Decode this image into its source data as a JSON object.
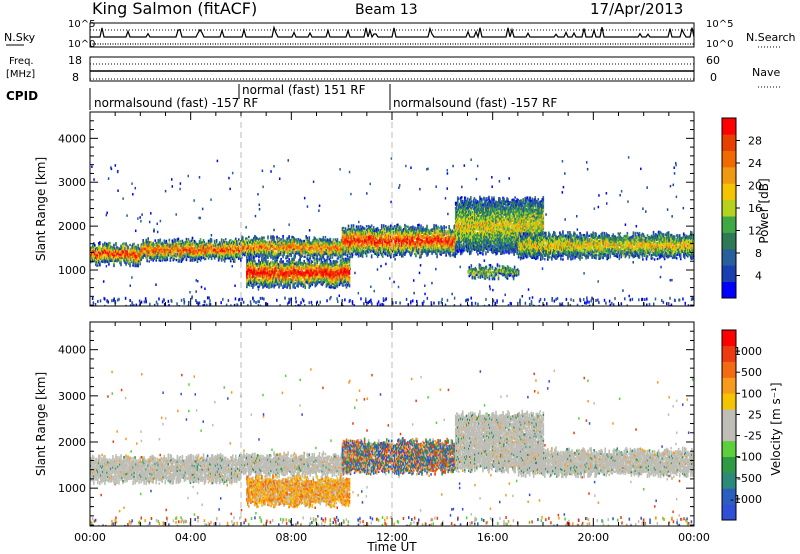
{
  "header": {
    "station": "King Salmon (fitACF)",
    "beam": "Beam 13",
    "date": "17/Apr/2013"
  },
  "top_panels": {
    "nsky": {
      "label": "N.Sky",
      "ticks": [
        "10^5",
        "10^0"
      ]
    },
    "nsearch": {
      "label": "N.Search"
    },
    "freq": {
      "label_line1": "Freq.",
      "label_line2": "[MHz]",
      "ticks": [
        "18",
        "8"
      ]
    },
    "nave": {
      "label": "Nave",
      "ticks": [
        "60",
        "0"
      ]
    },
    "cpid": {
      "label": "CPID",
      "segments": [
        {
          "text": "normalsound (fast) -157 RF",
          "start_hour": 0,
          "end_hour": 6
        },
        {
          "text": "normal (fast) 151 RF",
          "start_hour": 6,
          "end_hour": 12
        },
        {
          "text": "normalsound (fast) -157 RF",
          "start_hour": 12,
          "end_hour": 24
        }
      ]
    }
  },
  "chart_data": [
    {
      "type": "heatmap",
      "quantity": "Power",
      "ylabel": "Slant Range [km]",
      "xlabel": "",
      "xlim_hours": [
        0,
        24
      ],
      "ylim_km": [
        180,
        4600
      ],
      "yticks": [
        "4000",
        "3000",
        "2000",
        "1000"
      ],
      "colorbar": {
        "label": "Power [dB]",
        "ticks": [
          "28",
          "24",
          "20",
          "16",
          "12",
          "8",
          "4"
        ],
        "colors": [
          "#0000ff",
          "#1a3fb0",
          "#27609a",
          "#2f7a56",
          "#3fa845",
          "#b5d31e",
          "#f5c400",
          "#f09a14",
          "#f06a00",
          "#e84000",
          "#ff0000"
        ]
      },
      "bands": [
        {
          "x0": 0.0,
          "x1": 2.0,
          "y0": 1150,
          "y1": 1550,
          "level": 0.55
        },
        {
          "x0": 2.0,
          "x1": 6.0,
          "y0": 1250,
          "y1": 1650,
          "level": 0.5
        },
        {
          "x0": 6.0,
          "x1": 10.0,
          "y0": 1300,
          "y1": 1700,
          "level": 0.45
        },
        {
          "x0": 6.2,
          "x1": 10.3,
          "y0": 650,
          "y1": 1200,
          "level": 0.6
        },
        {
          "x0": 10.0,
          "x1": 14.5,
          "y0": 1350,
          "y1": 1950,
          "level": 0.55
        },
        {
          "x0": 14.5,
          "x1": 18.0,
          "y0": 1400,
          "y1": 2600,
          "level": 0.3
        },
        {
          "x0": 15.0,
          "x1": 17.0,
          "y0": 850,
          "y1": 1050,
          "level": 0.25
        },
        {
          "x0": 17.0,
          "x1": 24.0,
          "y0": 1300,
          "y1": 1800,
          "level": 0.35
        }
      ]
    },
    {
      "type": "heatmap",
      "quantity": "Velocity",
      "ylabel": "Slant Range [km]",
      "xlabel": "Time UT",
      "xlim_hours": [
        0,
        24
      ],
      "ylim_km": [
        180,
        4600
      ],
      "yticks": [
        "4000",
        "3000",
        "2000",
        "1000"
      ],
      "xticks": [
        "00:00",
        "04:00",
        "08:00",
        "12:00",
        "16:00",
        "20:00",
        "00:00"
      ],
      "colorbar": {
        "label": "Velocity [m s⁻¹]",
        "ticks": [
          "1000",
          "500",
          "100",
          "25",
          "-25",
          "-100",
          "-500",
          "-1000"
        ],
        "colors": [
          "#2e4fd6",
          "#2a5fc0",
          "#2b8a7a",
          "#2f9a45",
          "#5bd03a",
          "#bebeb6",
          "#bebeb6",
          "#f5c400",
          "#f79b1a",
          "#f36a12",
          "#ee3a10",
          "#ff0000"
        ]
      },
      "bands": [
        {
          "x0": 0.0,
          "x1": 6.0,
          "y0": 1150,
          "y1": 1650,
          "kind": "ground"
        },
        {
          "x0": 6.0,
          "x1": 10.0,
          "y0": 1300,
          "y1": 1700,
          "kind": "ground"
        },
        {
          "x0": 6.2,
          "x1": 10.3,
          "y0": 650,
          "y1": 1200,
          "kind": "neg"
        },
        {
          "x0": 10.0,
          "x1": 14.5,
          "y0": 1350,
          "y1": 2000,
          "kind": "mixed"
        },
        {
          "x0": 14.5,
          "x1": 18.0,
          "y0": 1400,
          "y1": 2600,
          "kind": "ground"
        },
        {
          "x0": 17.0,
          "x1": 24.0,
          "y0": 1300,
          "y1": 1800,
          "kind": "ground"
        }
      ]
    }
  ]
}
